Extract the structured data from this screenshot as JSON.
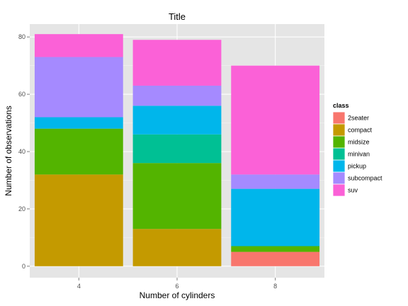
{
  "chart_data": {
    "type": "bar",
    "stacked": true,
    "title": "Title",
    "xlabel": "Number of cylinders",
    "ylabel": "Number of observations",
    "categories": [
      "4",
      "6",
      "8"
    ],
    "ylim": [
      0,
      85
    ],
    "yticks": [
      0,
      20,
      40,
      60,
      80
    ],
    "grid": true,
    "legend_title": "class",
    "legend_position": "right",
    "series": [
      {
        "name": "2seater",
        "color": "#F8766D",
        "values": [
          0,
          0,
          5
        ]
      },
      {
        "name": "compact",
        "color": "#C49A00",
        "values": [
          32,
          13,
          0
        ]
      },
      {
        "name": "midsize",
        "color": "#53B400",
        "values": [
          16,
          23,
          2
        ]
      },
      {
        "name": "minivan",
        "color": "#00C094",
        "values": [
          0,
          10,
          0
        ]
      },
      {
        "name": "pickup",
        "color": "#00B6EB",
        "values": [
          4,
          10,
          20
        ]
      },
      {
        "name": "subcompact",
        "color": "#A58AFF",
        "values": [
          21,
          7,
          5
        ]
      },
      {
        "name": "suv",
        "color": "#FB61D7",
        "values": [
          8,
          16,
          38
        ]
      }
    ]
  }
}
